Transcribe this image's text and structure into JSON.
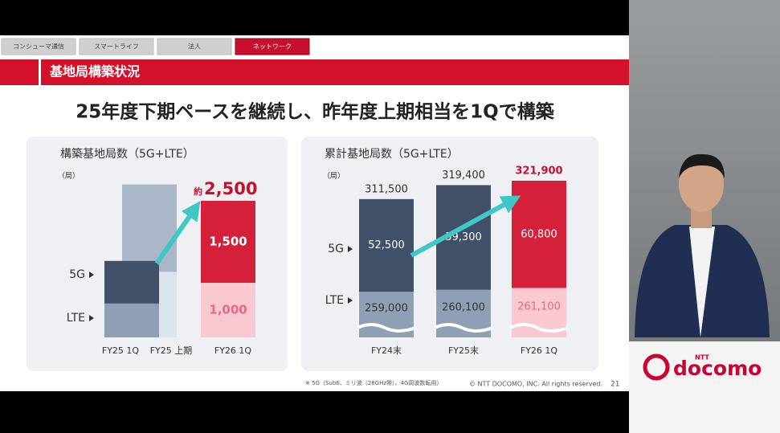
{
  "tabs": [
    "コンシューマ通信",
    "スマートライフ",
    "法人",
    "ネットワーク"
  ],
  "active_tab": 3,
  "section_title": "基地局構築状況",
  "headline": "25年度下期ペースを継続し、昨年度上期相当を1Qで構築",
  "left_chart": {
    "title": "構築基地局数（5G+LTE）",
    "unit": "（局）",
    "series_labels": [
      "5G",
      "LTE"
    ],
    "categories": [
      "FY25 1Q",
      "FY25 上期",
      "FY26 1Q"
    ],
    "five_g": [
      780,
      1600,
      {
        "value": 1500,
        "label": "1,500"
      }
    ],
    "lte": [
      620,
      1200,
      {
        "value": 1000,
        "label": "1,000"
      }
    ],
    "total_prefix": "約",
    "total": {
      "value": 2500,
      "label": "2,500"
    }
  },
  "right_chart": {
    "title": "累計基地局数（5G+LTE）",
    "unit": "（局）",
    "series_labels": [
      "5G",
      "LTE"
    ],
    "categories": [
      "FY24末",
      "FY25末",
      "FY26 1Q"
    ],
    "totals": [
      {
        "value": 311500,
        "label": "311,500"
      },
      {
        "value": 319400,
        "label": "319,400"
      },
      {
        "value": 321900,
        "label": "321,900"
      }
    ],
    "five_g": [
      {
        "value": 52500,
        "label": "52,500"
      },
      {
        "value": 59300,
        "label": "59,300"
      },
      {
        "value": 60800,
        "label": "60,800"
      }
    ],
    "lte": [
      {
        "value": 259000,
        "label": "259,000"
      },
      {
        "value": 260100,
        "label": "260,100"
      },
      {
        "value": 261100,
        "label": "261,100"
      }
    ]
  },
  "footnote": "※ 5G（Sub6、ミリ波（28GHz帯）、4G周波数転用）",
  "copyright": "© NTT DOCOMO, INC.  All rights reserved.",
  "page_number": "21",
  "logo": {
    "brand": "NTT",
    "name": "docomo"
  }
}
